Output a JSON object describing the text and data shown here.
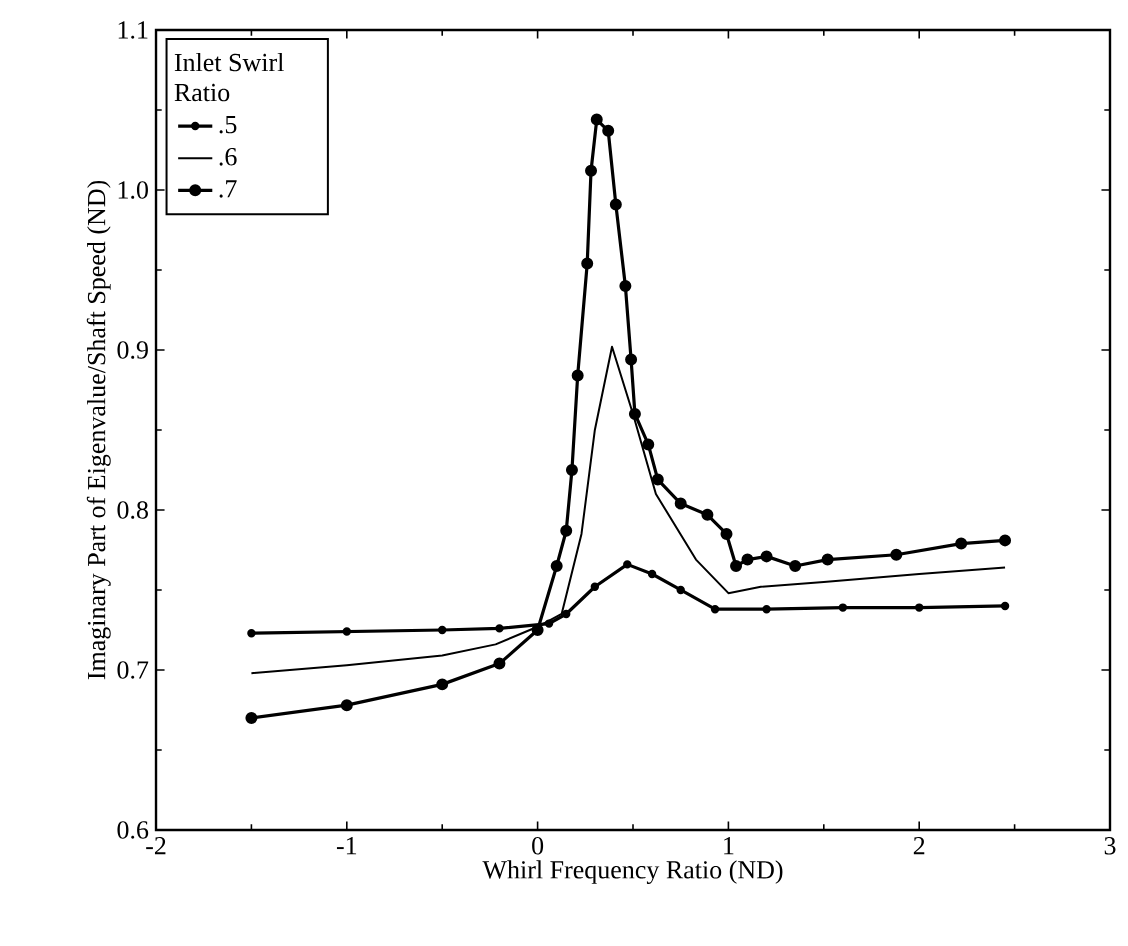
{
  "chart_data": {
    "type": "line",
    "xlabel": "Whirl Frequency Ratio (ND)",
    "ylabel": "Imaginary Part of Eigenvalue/Shaft Speed (ND)",
    "legend_title": "Inlet Swirl Ratio",
    "legend": "top left",
    "xlim": [
      -2,
      3
    ],
    "ylim": [
      0.6,
      1.1
    ],
    "xticks": [
      -2,
      -1,
      0,
      1,
      2,
      3
    ],
    "yticks": [
      0.6,
      0.7,
      0.8,
      0.9,
      {
        "value": 1.0,
        "label": "1.0"
      },
      1.1
    ],
    "series": [
      {
        "name": ".5",
        "color": "#000000",
        "marker": "circle",
        "x": [
          -1.5,
          -1.0,
          -0.5,
          -0.2,
          0.06,
          0.15,
          0.3,
          0.47,
          0.6,
          0.75,
          0.93,
          1.2,
          1.6,
          2.0,
          2.45
        ],
        "values": [
          0.723,
          0.724,
          0.725,
          0.726,
          0.729,
          0.735,
          0.752,
          0.766,
          0.76,
          0.75,
          0.738,
          0.738,
          0.739,
          0.739,
          0.74
        ]
      },
      {
        "name": ".6",
        "color": "#000000",
        "marker": "none",
        "x": [
          -1.5,
          -1.0,
          -0.5,
          -0.22,
          0.0,
          0.126,
          0.23,
          0.3,
          0.39,
          0.5,
          0.62,
          0.83,
          1.0,
          1.17,
          1.5,
          2.0,
          2.45
        ],
        "values": [
          0.698,
          0.703,
          0.709,
          0.716,
          0.727,
          0.735,
          0.785,
          0.85,
          0.902,
          0.86,
          0.81,
          0.769,
          0.748,
          0.752,
          0.755,
          0.76,
          0.764
        ]
      },
      {
        "name": ".7",
        "color": "#000000",
        "marker": "circle",
        "x": [
          -1.5,
          -1.0,
          -0.5,
          -0.2,
          0.0,
          0.1,
          0.15,
          0.18,
          0.21,
          0.26,
          0.28,
          0.31,
          0.37,
          0.41,
          0.46,
          0.49,
          0.51,
          0.58,
          0.63,
          0.75,
          0.89,
          0.99,
          1.04,
          1.1,
          1.2,
          1.35,
          1.52,
          1.88,
          2.22,
          2.45
        ],
        "values": [
          0.67,
          0.678,
          0.691,
          0.704,
          0.725,
          0.765,
          0.787,
          0.825,
          0.884,
          0.954,
          1.012,
          1.044,
          1.037,
          0.991,
          0.94,
          0.894,
          0.86,
          0.841,
          0.819,
          0.804,
          0.797,
          0.785,
          0.765,
          0.769,
          0.771,
          0.765,
          0.769,
          0.772,
          0.779,
          0.781
        ]
      }
    ]
  }
}
